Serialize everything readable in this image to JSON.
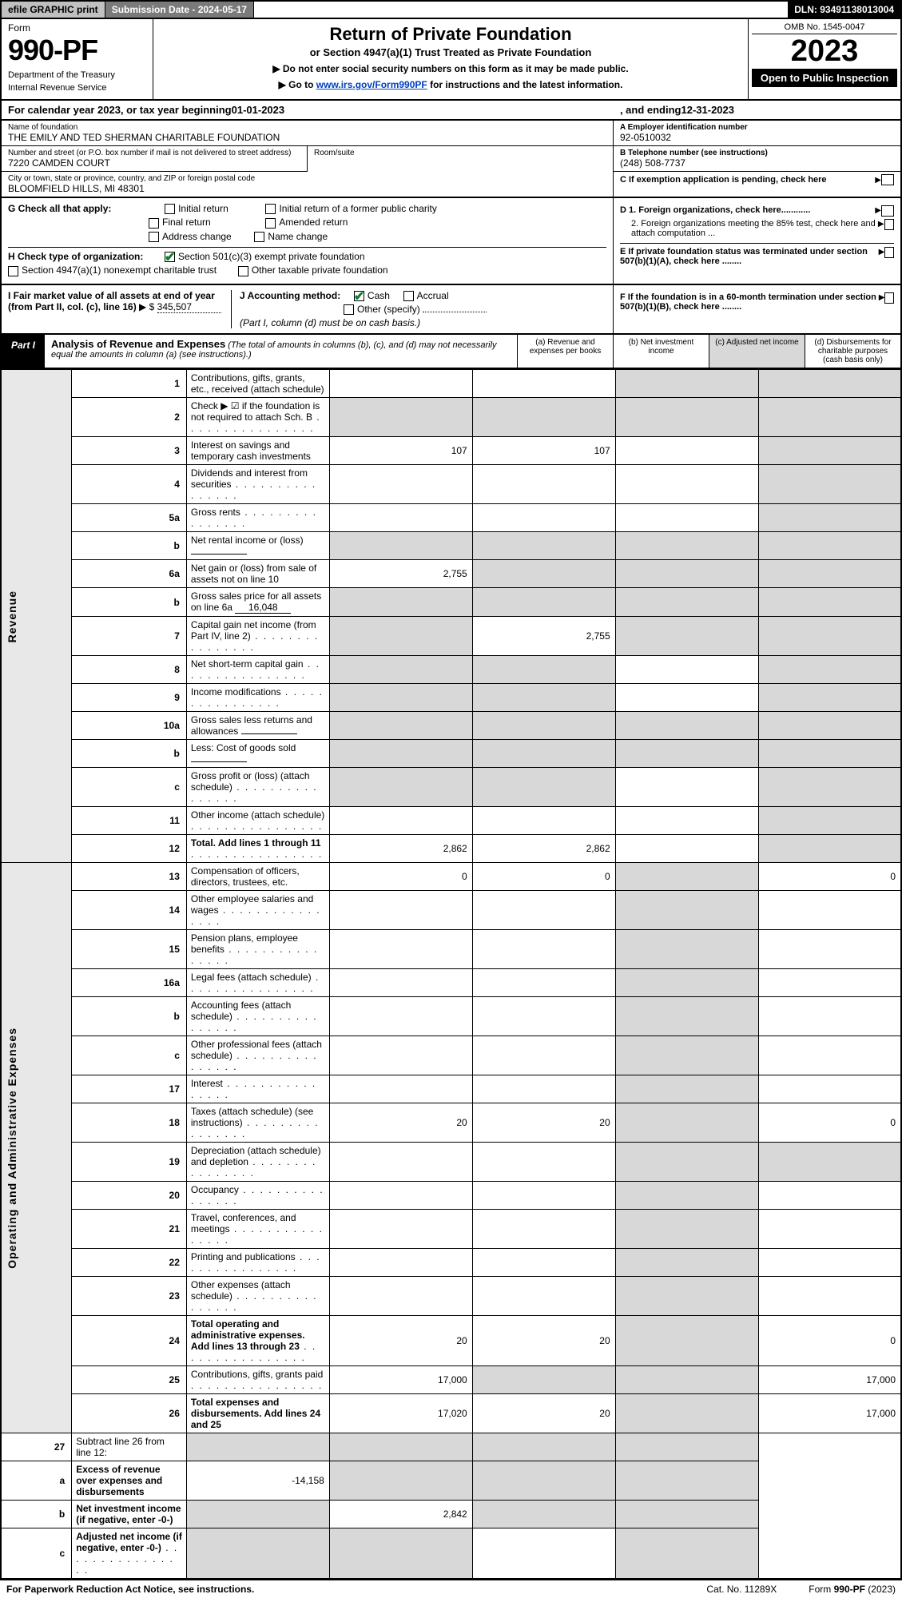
{
  "topbar": {
    "efile": "efile GRAPHIC print",
    "subdate_label": "Submission Date - 2024-05-17",
    "dln": "DLN: 93491138013004"
  },
  "header": {
    "form_label": "Form",
    "form_number": "990-PF",
    "dept": "Department of the Treasury",
    "irs": "Internal Revenue Service",
    "title": "Return of Private Foundation",
    "subtitle": "or Section 4947(a)(1) Trust Treated as Private Foundation",
    "note1": "▶ Do not enter social security numbers on this form as it may be made public.",
    "note2_pre": "▶ Go to ",
    "note2_link": "www.irs.gov/Form990PF",
    "note2_post": " for instructions and the latest information.",
    "omb": "OMB No. 1545-0047",
    "year": "2023",
    "inspect": "Open to Public Inspection"
  },
  "calyear": {
    "pre": "For calendar year 2023, or tax year beginning ",
    "begin": "01-01-2023",
    "mid": ", and ending ",
    "end": "12-31-2023"
  },
  "info": {
    "name_lbl": "Name of foundation",
    "name": "THE EMILY AND TED SHERMAN CHARITABLE FOUNDATION",
    "addr_lbl": "Number and street (or P.O. box number if mail is not delivered to street address)",
    "addr": "7220 CAMDEN COURT",
    "room_lbl": "Room/suite",
    "city_lbl": "City or town, state or province, country, and ZIP or foreign postal code",
    "city": "BLOOMFIELD HILLS, MI  48301",
    "ein_lbl": "A Employer identification number",
    "ein": "92-0510032",
    "tel_lbl": "B Telephone number (see instructions)",
    "tel": "(248) 508-7737",
    "c_lbl": "C If exemption application is pending, check here"
  },
  "checksG": {
    "label": "G Check all that apply:",
    "initial": "Initial return",
    "initial_former": "Initial return of a former public charity",
    "final": "Final return",
    "amended": "Amended return",
    "addr_change": "Address change",
    "name_change": "Name change"
  },
  "checksH": {
    "label": "H Check type of organization:",
    "opt1": "Section 501(c)(3) exempt private foundation",
    "opt2": "Section 4947(a)(1) nonexempt charitable trust",
    "opt3": "Other taxable private foundation"
  },
  "rightD": {
    "d1": "D 1. Foreign organizations, check here............",
    "d2": "2. Foreign organizations meeting the 85% test, check here and attach computation ...",
    "e": "E  If private foundation status was terminated under section 507(b)(1)(A), check here ........"
  },
  "blockI": {
    "label": "I Fair market value of all assets at end of year (from Part II, col. (c), line 16)",
    "arrow": "▶ $",
    "value": "345,507"
  },
  "blockJ": {
    "label": "J Accounting method:",
    "cash": "Cash",
    "accrual": "Accrual",
    "other": "Other (specify)",
    "note": "(Part I, column (d) must be on cash basis.)"
  },
  "rightF": {
    "f": "F  If the foundation is in a 60-month termination under section 507(b)(1)(B), check here ........"
  },
  "part1": {
    "tag": "Part I",
    "title": "Analysis of Revenue and Expenses",
    "note": "(The total of amounts in columns (b), (c), and (d) may not necessarily equal the amounts in column (a) (see instructions).)",
    "col_a": "(a)  Revenue and expenses per books",
    "col_b": "(b)  Net investment income",
    "col_c": "(c)  Adjusted net income",
    "col_d": "(d)  Disbursements for charitable purposes (cash basis only)"
  },
  "vlabels": {
    "revenue": "Revenue",
    "expenses": "Operating and Administrative Expenses"
  },
  "rows": [
    {
      "n": "1",
      "desc": "Contributions, gifts, grants, etc., received (attach schedule)",
      "a": "",
      "b": "",
      "c": "grey",
      "d": "grey"
    },
    {
      "n": "2",
      "desc": "Check ▶ ☑ if the foundation is not required to attach Sch. B",
      "a": "grey",
      "b": "grey",
      "c": "grey",
      "d": "grey",
      "descbold": true,
      "dots": true
    },
    {
      "n": "3",
      "desc": "Interest on savings and temporary cash investments",
      "a": "107",
      "b": "107",
      "c": "",
      "d": "grey"
    },
    {
      "n": "4",
      "desc": "Dividends and interest from securities",
      "a": "",
      "b": "",
      "c": "",
      "d": "grey",
      "dots": true
    },
    {
      "n": "5a",
      "desc": "Gross rents",
      "a": "",
      "b": "",
      "c": "",
      "d": "grey",
      "dots": true
    },
    {
      "n": "b",
      "desc": "Net rental income or (loss)",
      "a": "grey",
      "b": "grey",
      "c": "grey",
      "d": "grey",
      "inline": true
    },
    {
      "n": "6a",
      "desc": "Net gain or (loss) from sale of assets not on line 10",
      "a": "2,755",
      "b": "grey",
      "c": "grey",
      "d": "grey"
    },
    {
      "n": "b",
      "desc": "Gross sales price for all assets on line 6a",
      "a": "grey",
      "b": "grey",
      "c": "grey",
      "d": "grey",
      "inline": true,
      "inline_val": "16,048"
    },
    {
      "n": "7",
      "desc": "Capital gain net income (from Part IV, line 2)",
      "a": "grey",
      "b": "2,755",
      "c": "grey",
      "d": "grey",
      "dots": true
    },
    {
      "n": "8",
      "desc": "Net short-term capital gain",
      "a": "grey",
      "b": "grey",
      "c": "",
      "d": "grey",
      "dots": true
    },
    {
      "n": "9",
      "desc": "Income modifications",
      "a": "grey",
      "b": "grey",
      "c": "",
      "d": "grey",
      "dots": true
    },
    {
      "n": "10a",
      "desc": "Gross sales less returns and allowances",
      "a": "grey",
      "b": "grey",
      "c": "grey",
      "d": "grey",
      "inline": true
    },
    {
      "n": "b",
      "desc": "Less: Cost of goods sold",
      "a": "grey",
      "b": "grey",
      "c": "grey",
      "d": "grey",
      "inline": true,
      "dots": true
    },
    {
      "n": "c",
      "desc": "Gross profit or (loss) (attach schedule)",
      "a": "grey",
      "b": "grey",
      "c": "",
      "d": "grey",
      "dots": true
    },
    {
      "n": "11",
      "desc": "Other income (attach schedule)",
      "a": "",
      "b": "",
      "c": "",
      "d": "grey",
      "dots": true
    },
    {
      "n": "12",
      "desc": "Total. Add lines 1 through 11",
      "a": "2,862",
      "b": "2,862",
      "c": "",
      "d": "grey",
      "bold": true,
      "dots": true
    }
  ],
  "exp_rows": [
    {
      "n": "13",
      "desc": "Compensation of officers, directors, trustees, etc.",
      "a": "0",
      "b": "0",
      "c": "grey",
      "d": "0"
    },
    {
      "n": "14",
      "desc": "Other employee salaries and wages",
      "a": "",
      "b": "",
      "c": "grey",
      "d": "",
      "dots": true
    },
    {
      "n": "15",
      "desc": "Pension plans, employee benefits",
      "a": "",
      "b": "",
      "c": "grey",
      "d": "",
      "dots": true
    },
    {
      "n": "16a",
      "desc": "Legal fees (attach schedule)",
      "a": "",
      "b": "",
      "c": "grey",
      "d": "",
      "dots": true
    },
    {
      "n": "b",
      "desc": "Accounting fees (attach schedule)",
      "a": "",
      "b": "",
      "c": "grey",
      "d": "",
      "dots": true
    },
    {
      "n": "c",
      "desc": "Other professional fees (attach schedule)",
      "a": "",
      "b": "",
      "c": "grey",
      "d": "",
      "dots": true
    },
    {
      "n": "17",
      "desc": "Interest",
      "a": "",
      "b": "",
      "c": "grey",
      "d": "",
      "dots": true
    },
    {
      "n": "18",
      "desc": "Taxes (attach schedule) (see instructions)",
      "a": "20",
      "b": "20",
      "c": "grey",
      "d": "0",
      "dots": true
    },
    {
      "n": "19",
      "desc": "Depreciation (attach schedule) and depletion",
      "a": "",
      "b": "",
      "c": "grey",
      "d": "grey",
      "dots": true
    },
    {
      "n": "20",
      "desc": "Occupancy",
      "a": "",
      "b": "",
      "c": "grey",
      "d": "",
      "dots": true
    },
    {
      "n": "21",
      "desc": "Travel, conferences, and meetings",
      "a": "",
      "b": "",
      "c": "grey",
      "d": "",
      "dots": true
    },
    {
      "n": "22",
      "desc": "Printing and publications",
      "a": "",
      "b": "",
      "c": "grey",
      "d": "",
      "dots": true
    },
    {
      "n": "23",
      "desc": "Other expenses (attach schedule)",
      "a": "",
      "b": "",
      "c": "grey",
      "d": "",
      "dots": true
    },
    {
      "n": "24",
      "desc": "Total operating and administrative expenses. Add lines 13 through 23",
      "a": "20",
      "b": "20",
      "c": "grey",
      "d": "0",
      "bold": true,
      "dots": true
    },
    {
      "n": "25",
      "desc": "Contributions, gifts, grants paid",
      "a": "17,000",
      "b": "grey",
      "c": "grey",
      "d": "17,000",
      "dots": true
    },
    {
      "n": "26",
      "desc": "Total expenses and disbursements. Add lines 24 and 25",
      "a": "17,020",
      "b": "20",
      "c": "grey",
      "d": "17,000",
      "bold": true
    }
  ],
  "bottom_rows": [
    {
      "n": "27",
      "desc": "Subtract line 26 from line 12:",
      "a": "grey",
      "b": "grey",
      "c": "grey",
      "d": "grey"
    },
    {
      "n": "a",
      "desc": "Excess of revenue over expenses and disbursements",
      "a": "-14,158",
      "b": "grey",
      "c": "grey",
      "d": "grey",
      "bold": true
    },
    {
      "n": "b",
      "desc": "Net investment income (if negative, enter -0-)",
      "a": "grey",
      "b": "2,842",
      "c": "grey",
      "d": "grey",
      "bold": true
    },
    {
      "n": "c",
      "desc": "Adjusted net income (if negative, enter -0-)",
      "a": "grey",
      "b": "grey",
      "c": "",
      "d": "grey",
      "bold": true,
      "dots": true
    }
  ],
  "footer": {
    "left": "For Paperwork Reduction Act Notice, see instructions.",
    "cat": "Cat. No. 11289X",
    "right": "Form 990-PF (2023)"
  },
  "colors": {
    "grey_bg": "#d8d8d8",
    "link": "#0040c0",
    "check_green": "#0a7a2a"
  }
}
